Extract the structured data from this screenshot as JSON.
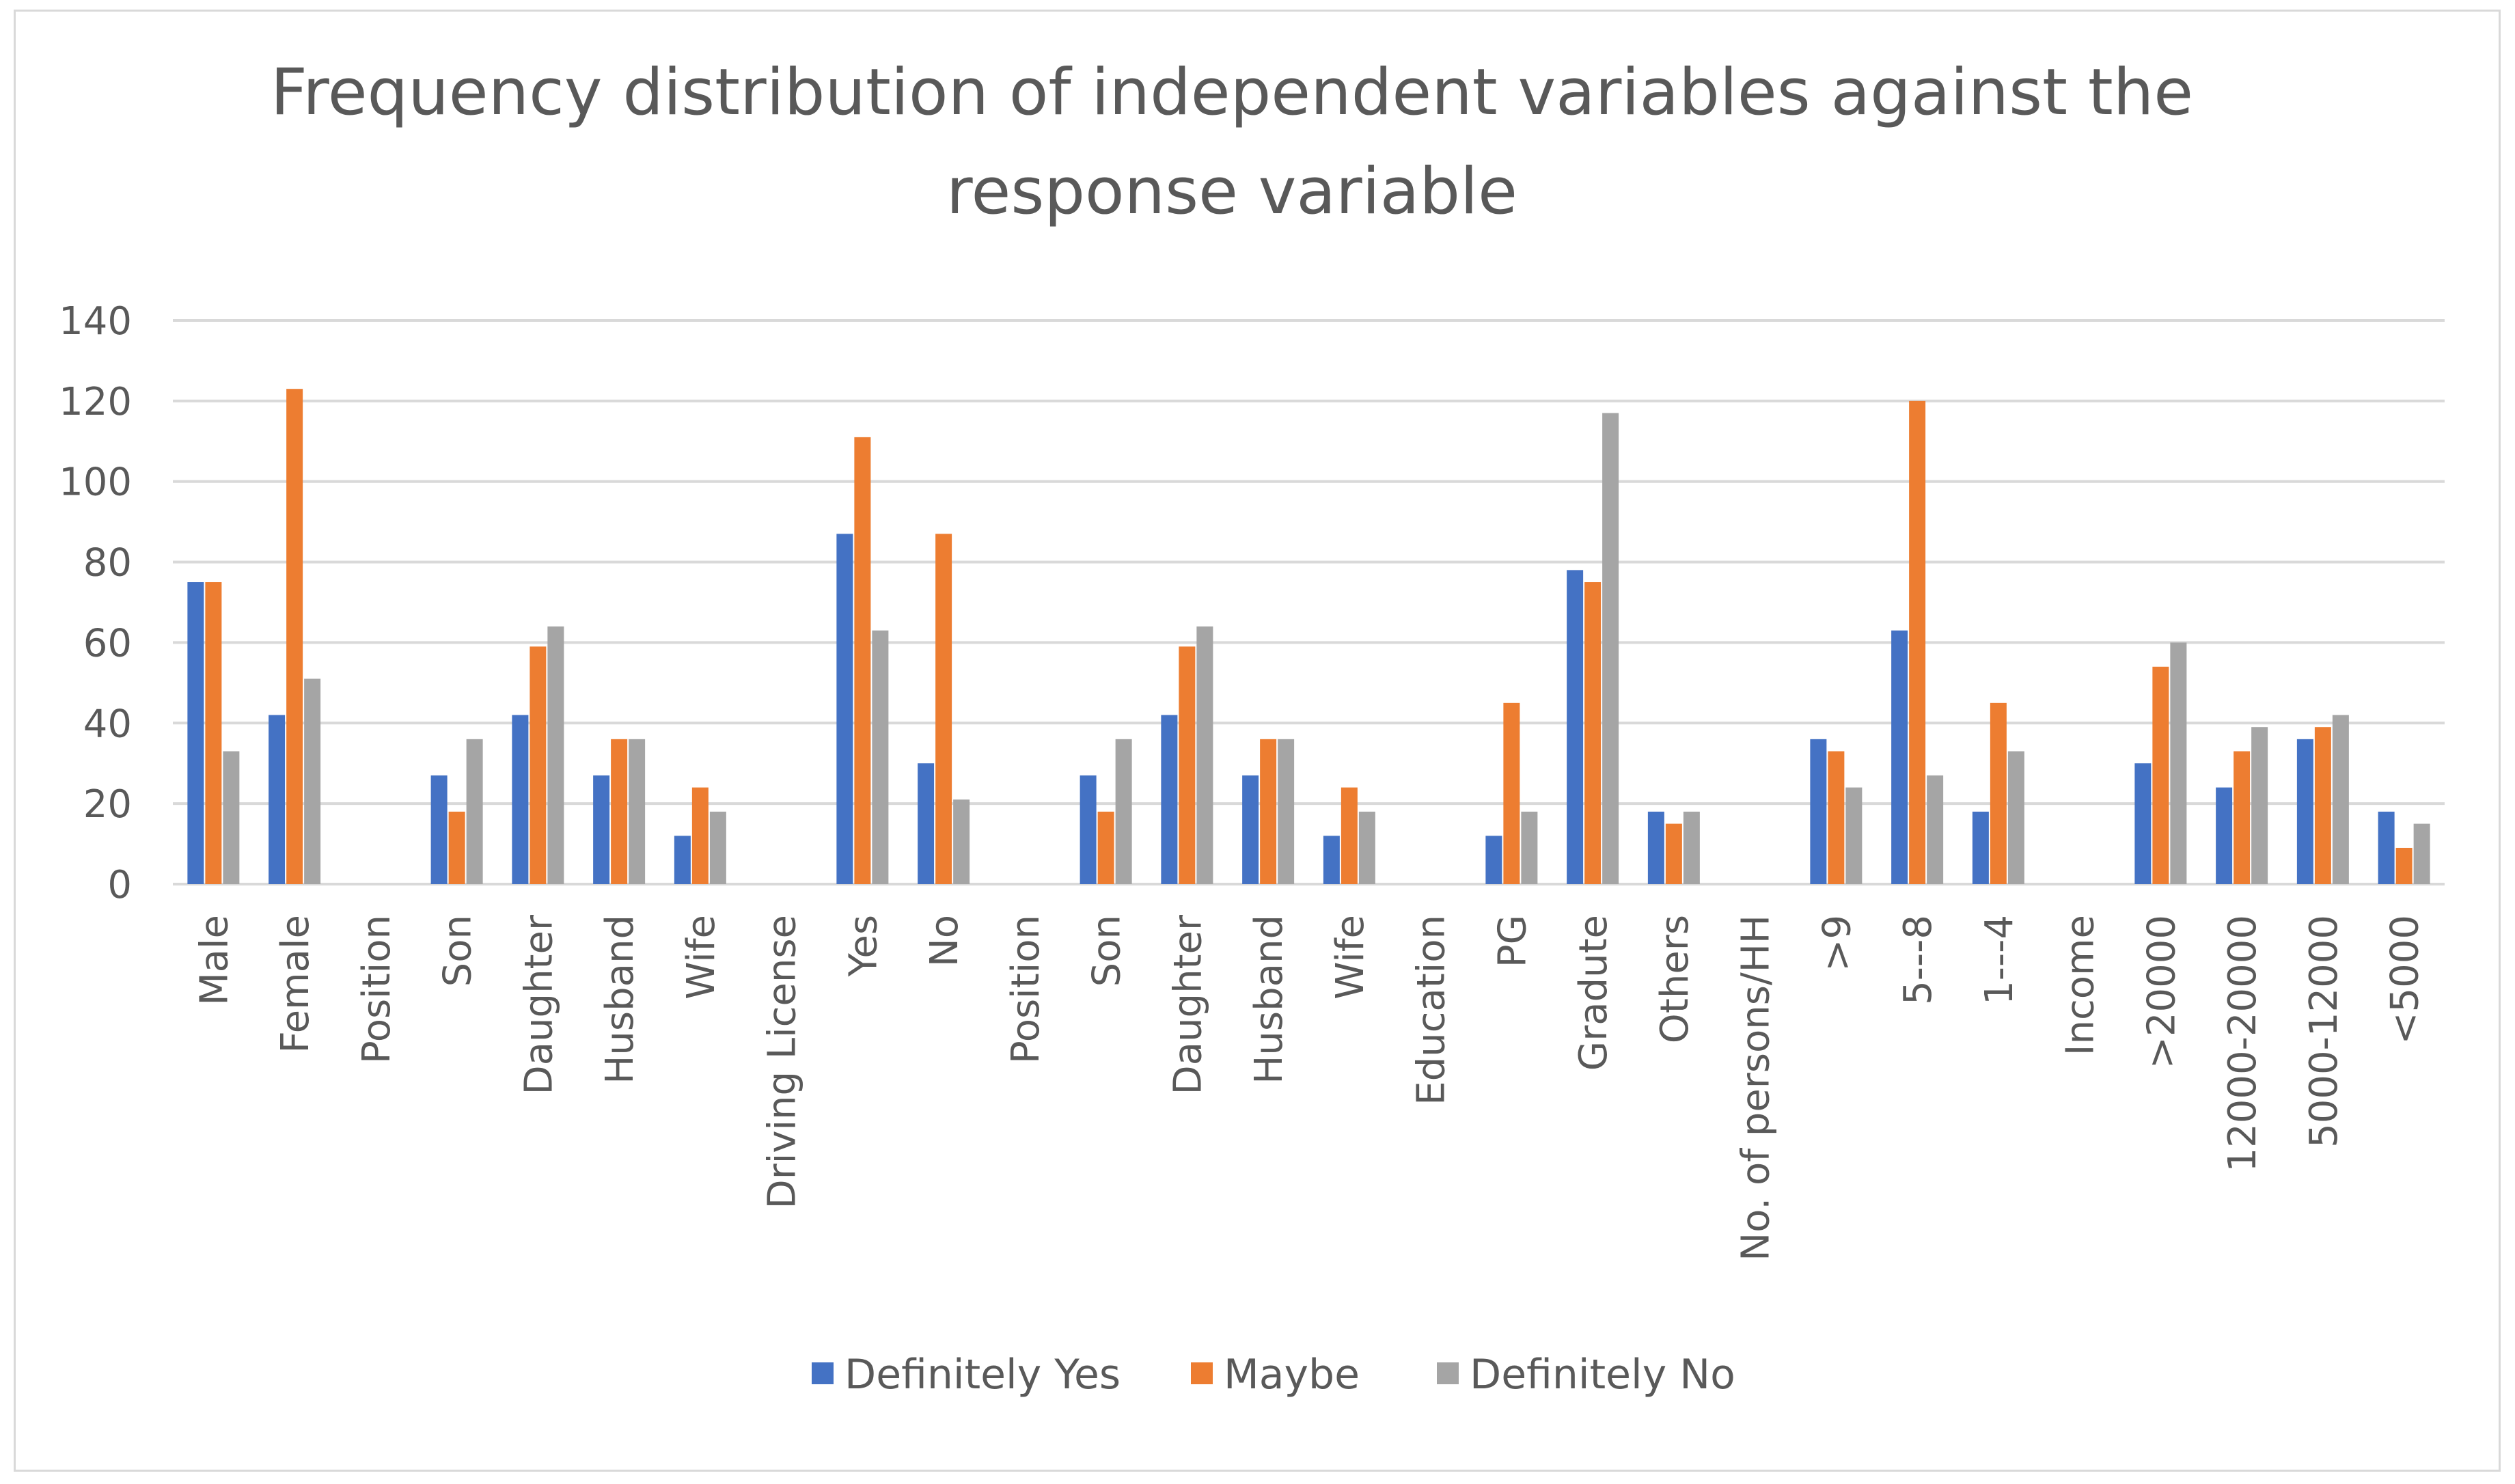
{
  "chart_data": {
    "type": "bar",
    "title": "Frequency distribution of independent variables against the response variable",
    "title_lines": [
      "Frequency distribution of independent variables against the",
      "response variable"
    ],
    "xlabel": "",
    "ylabel": "",
    "ylim": [
      0,
      140
    ],
    "yticks": [
      0,
      20,
      40,
      60,
      80,
      100,
      120,
      140
    ],
    "grid": true,
    "legend_position": "bottom",
    "categories": [
      "Male",
      "Female",
      "Position",
      "Son",
      "Daughter",
      "Husband",
      "Wife",
      "Driving License",
      "Yes",
      "No",
      "Position",
      "Son",
      "Daughter",
      "Husband",
      "Wife",
      "Education",
      "PG",
      "Gradute",
      "Others",
      "No. of persons/HH",
      ">9",
      "5---8",
      "1---4",
      "Income",
      ">20000",
      "12000-20000",
      "5000-12000",
      "<5000"
    ],
    "series": [
      {
        "name": "Definitely Yes",
        "color": "#4472c4",
        "values": [
          75,
          42,
          null,
          27,
          42,
          27,
          12,
          null,
          87,
          30,
          null,
          27,
          42,
          27,
          12,
          null,
          12,
          78,
          18,
          null,
          36,
          63,
          18,
          null,
          30,
          24,
          36,
          18
        ]
      },
      {
        "name": "Maybe",
        "color": "#ed7d31",
        "values": [
          75,
          123,
          null,
          18,
          59,
          36,
          24,
          null,
          111,
          87,
          null,
          18,
          59,
          36,
          24,
          null,
          45,
          75,
          15,
          null,
          33,
          120,
          45,
          null,
          54,
          33,
          39,
          9
        ]
      },
      {
        "name": "Definitely No",
        "color": "#a5a5a5",
        "values": [
          33,
          51,
          null,
          36,
          64,
          36,
          18,
          null,
          63,
          21,
          null,
          36,
          64,
          36,
          18,
          null,
          18,
          117,
          18,
          null,
          24,
          27,
          33,
          null,
          60,
          39,
          42,
          15
        ]
      }
    ]
  },
  "colors": {
    "grid": "#d9d9d9",
    "text": "#595959",
    "border": "#d9d9d9"
  }
}
